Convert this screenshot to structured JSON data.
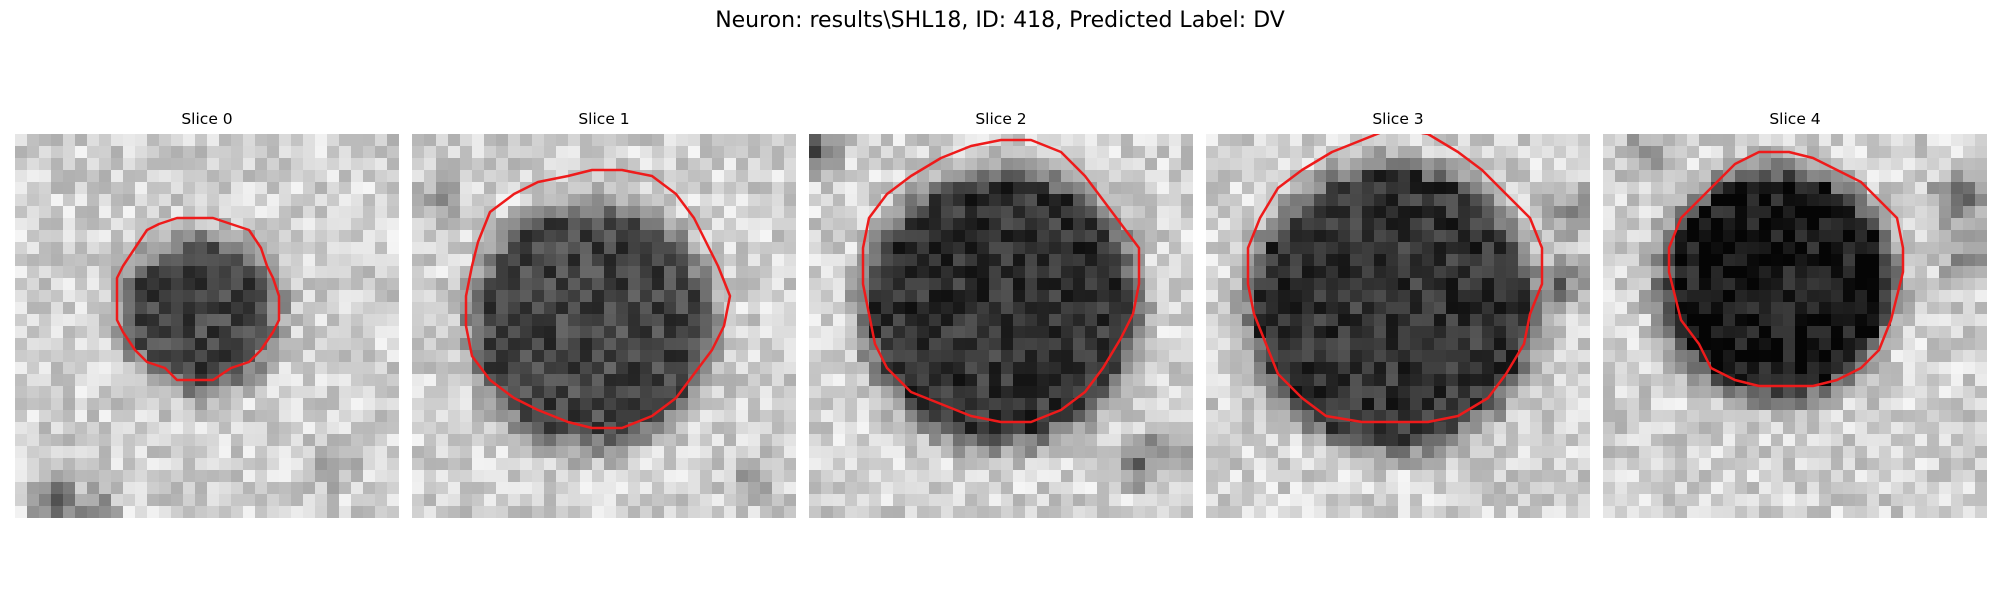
{
  "figure": {
    "title": "Neuron: results\\SHL18, ID: 418, Predicted Label: DV"
  },
  "contour_color": "#ee1b1b",
  "image_colormap": "grayscale",
  "panels": [
    {
      "label": "Slice 0"
    },
    {
      "label": "Slice 1"
    },
    {
      "label": "Slice 2"
    },
    {
      "label": "Slice 3"
    },
    {
      "label": "Slice 4"
    }
  ]
}
